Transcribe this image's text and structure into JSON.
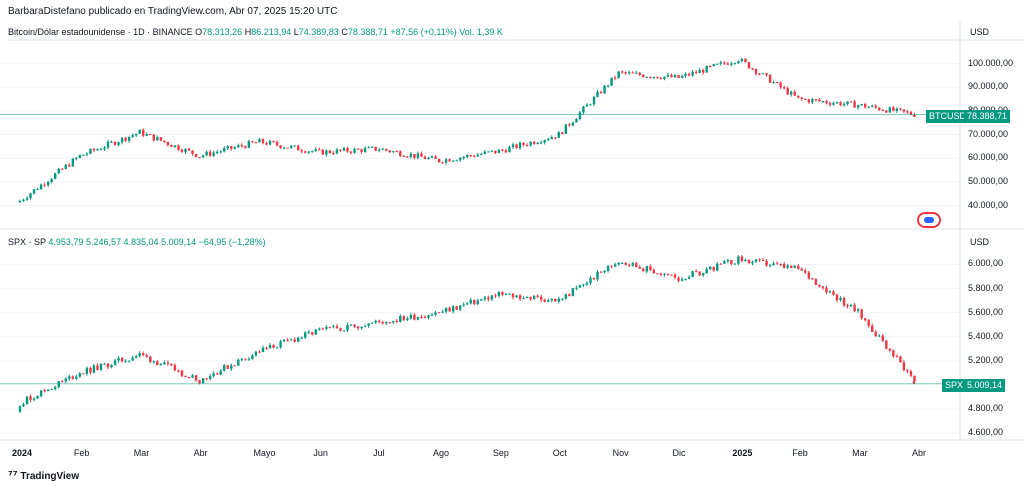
{
  "header": {
    "author_line": "BarbaraDistefano publicado en TradingView.com, Abr 07, 2025 15:20 UTC"
  },
  "btc": {
    "title": "Bitcoin/Dólar estadounidense · 1D · BINANCE",
    "o_label": "O",
    "o": "78.313,26",
    "h_label": "H",
    "h": "86.213,94",
    "l_label": "L",
    "l": "74.389,83",
    "c_label": "C",
    "c": "78.388,71",
    "change": "+87,56 (+0,11%)",
    "vol": "Vol. 1,39 K",
    "unit": "USD",
    "ticks": [
      "100.000,00",
      "90.000,00",
      "80.000,00",
      "70.000,00",
      "60.000,00",
      "50.000,00",
      "40.000,00"
    ],
    "price_tag_symbol": "BTCUSD",
    "price_tag_value": "78.388,71"
  },
  "spx": {
    "title": "SPX · SP",
    "o": "4.953,79",
    "h": "5.246,57",
    "l": "4.835,04",
    "c": "5.009,14",
    "change": "−64,95 (−1,28%)",
    "unit": "USD",
    "ticks": [
      "6.000,00",
      "5.800,00",
      "5.600,00",
      "5.400,00",
      "5.200,00",
      "4.800,00",
      "4.600,00"
    ],
    "price_tag_symbol": "SPX",
    "price_tag_value": "5.009,14"
  },
  "x_axis": [
    "2024",
    "Feb",
    "Mar",
    "Abr",
    "Mayo",
    "Jun",
    "Jul",
    "Ago",
    "Sep",
    "Oct",
    "Nov",
    "Dic",
    "2025",
    "Feb",
    "Mar",
    "Abr"
  ],
  "footer": {
    "brand": "TradingView"
  },
  "colors": {
    "up": "#089981",
    "down": "#f23645",
    "grid": "#f0f3fa",
    "text": "#131722"
  },
  "chart_data": [
    {
      "type": "candlestick",
      "title": "Bitcoin/Dólar estadounidense · 1D · BINANCE",
      "x": [
        "2024-01",
        "2024-02",
        "2024-03",
        "2024-04",
        "2024-05",
        "2024-06",
        "2024-07",
        "2024-08",
        "2024-09",
        "2024-10",
        "2024-11",
        "2024-12",
        "2025-01",
        "2025-02",
        "2025-03",
        "2025-04"
      ],
      "close": [
        42000,
        61000,
        71000,
        61000,
        67000,
        62500,
        64000,
        59000,
        63000,
        70000,
        96000,
        94000,
        102000,
        85000,
        82500,
        78388.71
      ],
      "ylim": [
        36000,
        110000
      ],
      "grid": true
    },
    {
      "type": "candlestick",
      "title": "SPX · SP",
      "x": [
        "2024-01",
        "2024-02",
        "2024-03",
        "2024-04",
        "2024-05",
        "2024-06",
        "2024-07",
        "2024-08",
        "2024-09",
        "2024-10",
        "2024-11",
        "2024-12",
        "2025-01",
        "2025-02",
        "2025-03",
        "2025-04"
      ],
      "close": [
        4850,
        5100,
        5250,
        5040,
        5280,
        5450,
        5520,
        5600,
        5750,
        5700,
        6030,
        5880,
        6040,
        5960,
        5600,
        5009.14
      ],
      "ylim": [
        4560,
        6120
      ],
      "grid": true
    }
  ]
}
